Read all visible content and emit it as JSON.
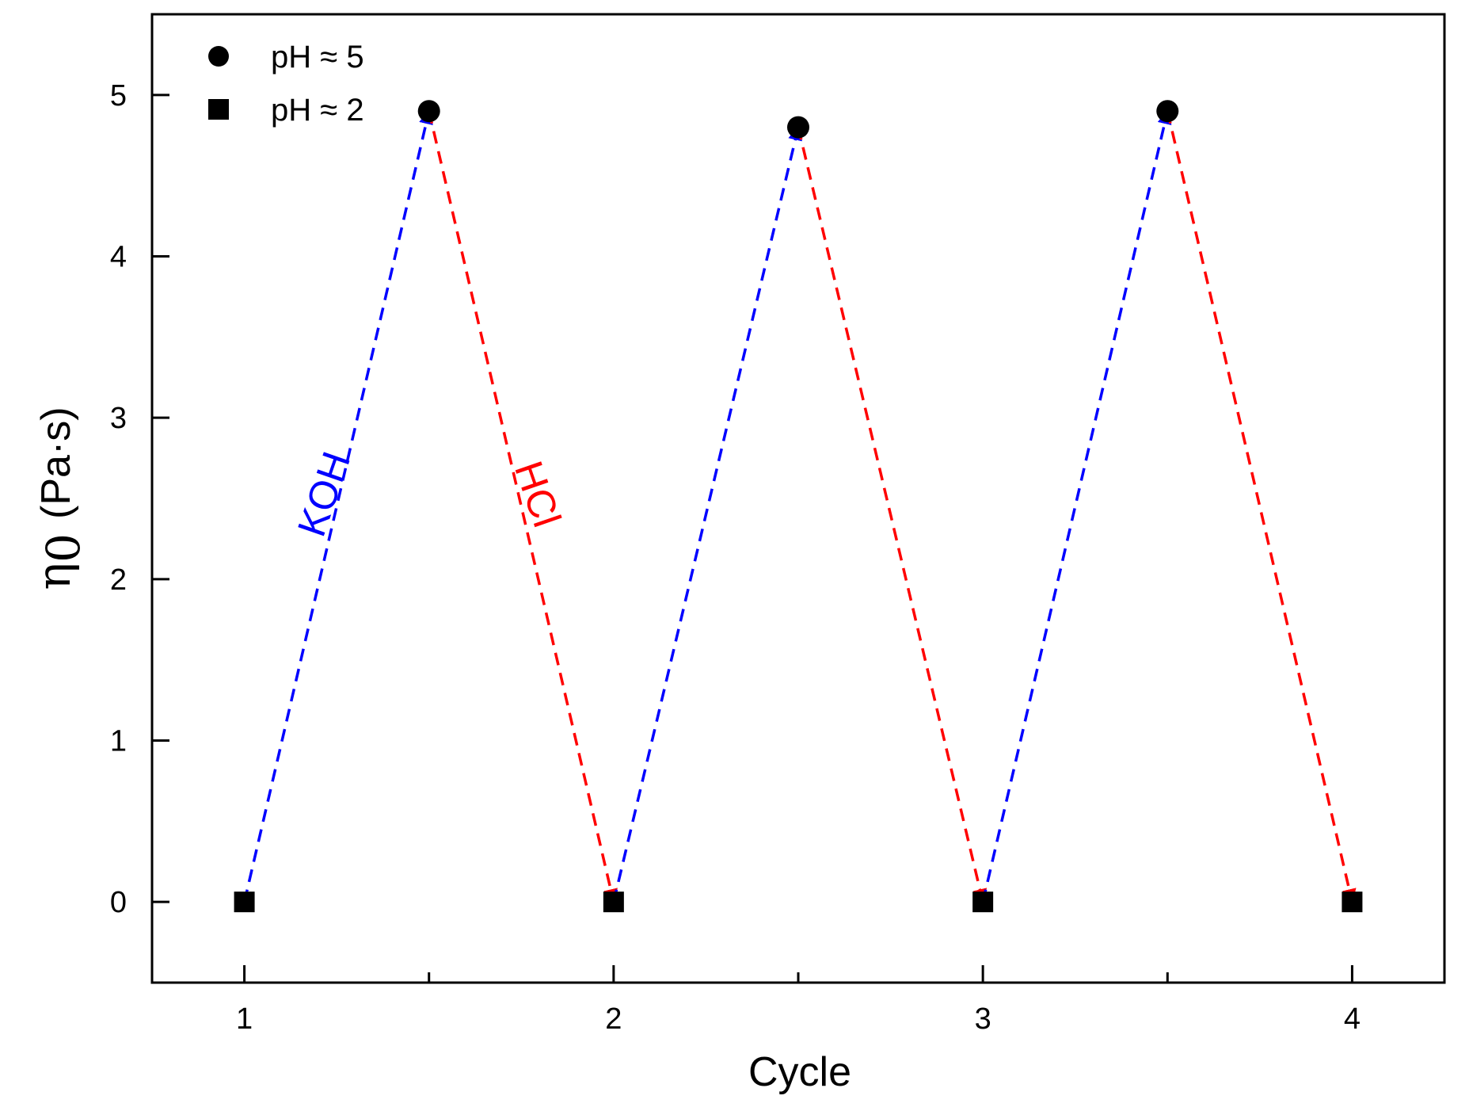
{
  "chart_data": {
    "type": "scatter",
    "title": "",
    "xlabel": "Cycle",
    "ylabel": {
      "symbol": "η",
      "subscript": "0",
      "units": "(Pa·s)"
    },
    "xlim": [
      0.75,
      4.25
    ],
    "ylim": [
      -0.5,
      5.5
    ],
    "xticks": [
      1,
      2,
      3,
      4
    ],
    "xminor_ticks": [
      1.5,
      2.5,
      3.5
    ],
    "yticks": [
      0,
      1,
      2,
      3,
      4,
      5
    ],
    "grid": false,
    "legend_position": "top-left",
    "series": [
      {
        "name": "pH ≈ 5",
        "marker": "circle",
        "x": [
          1.5,
          2.5,
          3.5
        ],
        "y": [
          4.9,
          4.8,
          4.9
        ]
      },
      {
        "name": "pH ≈ 2",
        "marker": "square",
        "x": [
          1,
          2,
          3,
          4
        ],
        "y": [
          0,
          0,
          0,
          0
        ]
      }
    ],
    "arrows": [
      {
        "from": [
          1,
          0
        ],
        "to": [
          1.5,
          4.9
        ],
        "color": "#0000ff",
        "reagent": "KOH"
      },
      {
        "from": [
          1.5,
          4.9
        ],
        "to": [
          2,
          0
        ],
        "color": "#ff0000",
        "reagent": "HCl"
      },
      {
        "from": [
          2,
          0
        ],
        "to": [
          2.5,
          4.8
        ],
        "color": "#0000ff",
        "reagent": "KOH"
      },
      {
        "from": [
          2.5,
          4.8
        ],
        "to": [
          3,
          0
        ],
        "color": "#ff0000",
        "reagent": "HCl"
      },
      {
        "from": [
          3,
          0
        ],
        "to": [
          3.5,
          4.9
        ],
        "color": "#0000ff",
        "reagent": "KOH"
      },
      {
        "from": [
          3.5,
          4.9
        ],
        "to": [
          4,
          0
        ],
        "color": "#ff0000",
        "reagent": "HCl"
      }
    ],
    "annotations": [
      {
        "text": "KOH",
        "color": "#0000ff",
        "x": 1.25,
        "y": 2.5
      },
      {
        "text": "HCl",
        "color": "#ff0000",
        "x": 1.76,
        "y": 2.5
      }
    ]
  }
}
